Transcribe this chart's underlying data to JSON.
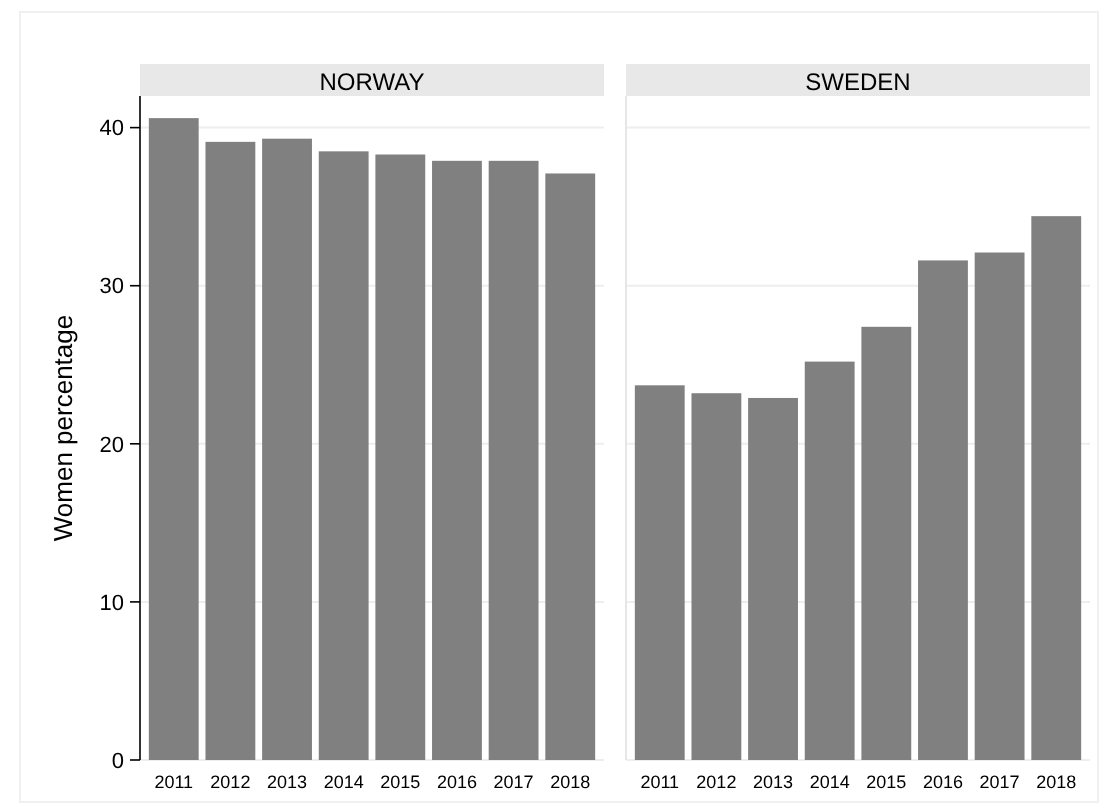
{
  "chart_data": [
    {
      "type": "bar",
      "title": "NORWAY",
      "ylabel": "Women percentage",
      "categories": [
        "2011",
        "2012",
        "2013",
        "2014",
        "2015",
        "2016",
        "2017",
        "2018"
      ],
      "values": [
        40.6,
        39.1,
        39.3,
        38.5,
        38.3,
        37.9,
        37.9,
        37.1
      ],
      "color": "#808080",
      "ylim": [
        0,
        42
      ],
      "yticks": [
        0,
        10,
        20,
        30,
        40
      ],
      "grid": "y"
    },
    {
      "type": "bar",
      "title": "SWEDEN",
      "categories": [
        "2011",
        "2012",
        "2013",
        "2014",
        "2015",
        "2016",
        "2017",
        "2018"
      ],
      "values": [
        23.7,
        23.2,
        22.9,
        25.2,
        27.4,
        31.6,
        32.1,
        34.4
      ],
      "color": "#808080",
      "ylim": [
        0,
        42
      ],
      "yticks": [
        0,
        10,
        20,
        30,
        40
      ],
      "grid": "y",
      "tick_labels": "x"
    }
  ]
}
